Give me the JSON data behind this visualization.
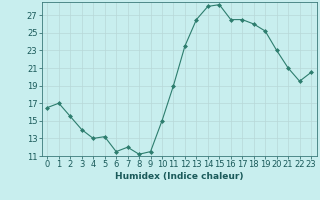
{
  "x": [
    0,
    1,
    2,
    3,
    4,
    5,
    6,
    7,
    8,
    9,
    10,
    11,
    12,
    13,
    14,
    15,
    16,
    17,
    18,
    19,
    20,
    21,
    22,
    23
  ],
  "y": [
    16.5,
    17.0,
    15.5,
    14.0,
    13.0,
    13.2,
    11.5,
    12.0,
    11.2,
    11.5,
    15.0,
    19.0,
    23.5,
    26.5,
    28.0,
    28.2,
    26.5,
    26.5,
    26.0,
    25.2,
    23.0,
    21.0,
    19.5,
    20.5
  ],
  "xlabel": "Humidex (Indice chaleur)",
  "ylim": [
    11,
    28.5
  ],
  "xlim": [
    -0.5,
    23.5
  ],
  "yticks": [
    11,
    13,
    15,
    17,
    19,
    21,
    23,
    25,
    27
  ],
  "xticks": [
    0,
    1,
    2,
    3,
    4,
    5,
    6,
    7,
    8,
    9,
    10,
    11,
    12,
    13,
    14,
    15,
    16,
    17,
    18,
    19,
    20,
    21,
    22,
    23
  ],
  "line_color": "#2d7d6e",
  "marker": "D",
  "marker_size": 2.0,
  "bg_color": "#c8eeee",
  "grid_color": "#b8d8d8",
  "label_fontsize": 6.5,
  "tick_fontsize": 6.0
}
